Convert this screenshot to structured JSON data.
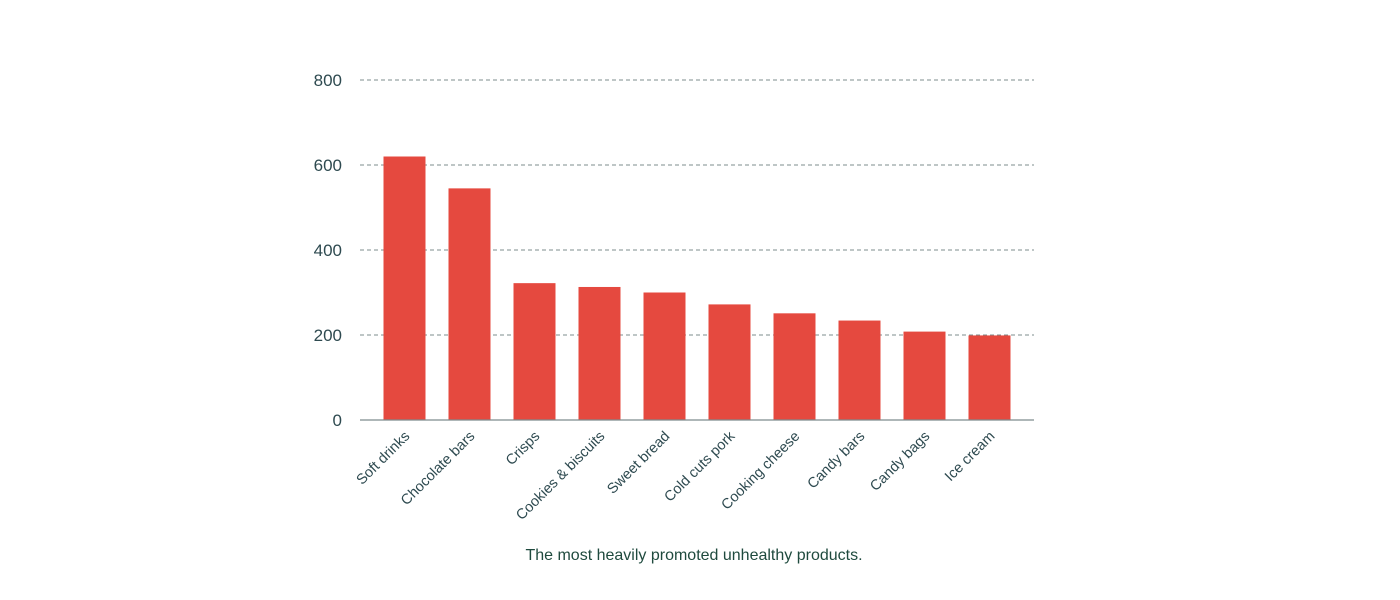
{
  "chart_data": {
    "type": "bar",
    "categories": [
      "Soft drinks",
      "Chocolate bars",
      "Crisps",
      "Cookies & biscuits",
      "Sweet bread",
      "Cold cuts pork",
      "Cooking cheese",
      "Candy bars",
      "Candy bags",
      "Ice cream"
    ],
    "values": [
      620,
      545,
      322,
      313,
      300,
      272,
      251,
      234,
      208,
      199
    ],
    "ylim": [
      0,
      800
    ],
    "yticks": [
      0,
      200,
      400,
      600,
      800
    ],
    "grid": true,
    "bar_color": "#e5493f",
    "caption": "The most heavily promoted unhealthy products."
  }
}
